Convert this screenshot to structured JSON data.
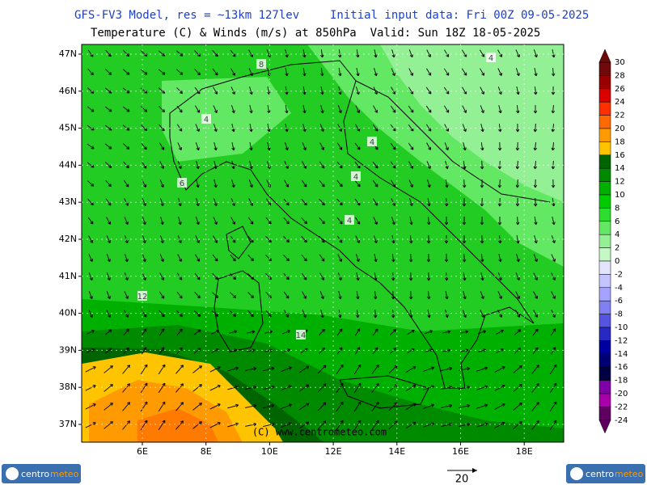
{
  "header": {
    "model": "GFS-FV3 Model, res = ~13km 127lev",
    "init": "Initial input data: Fri 00Z 09-05-2025",
    "subtitle": "Temperature (C) & Winds (m/s) at 850hPa  Valid: Sun 18Z 18-05-2025"
  },
  "map": {
    "lat_labels": [
      "47N",
      "46N",
      "45N",
      "44N",
      "43N",
      "42N",
      "41N",
      "40N",
      "39N",
      "38N",
      "37N"
    ],
    "lon_labels": [
      "6E",
      "8E",
      "10E",
      "12E",
      "14E",
      "16E",
      "18E"
    ],
    "contour_labels": [
      "8",
      "4",
      "4",
      "4",
      "4",
      "6",
      "4",
      "12",
      "14"
    ],
    "copyright": "(C) www.centrometeo.com"
  },
  "colorbar": {
    "labels": [
      30,
      28,
      26,
      24,
      22,
      20,
      18,
      16,
      14,
      12,
      10,
      8,
      6,
      4,
      2,
      0,
      -2,
      -4,
      -6,
      -8,
      -10,
      -12,
      -14,
      -16,
      -18,
      -20,
      -22,
      -24
    ],
    "colors": [
      "#6e0a0a",
      "#9a0000",
      "#d80000",
      "#ff3000",
      "#ff6a00",
      "#ff9a00",
      "#ffc400",
      "#006400",
      "#008a00",
      "#00b000",
      "#00cc00",
      "#2ede2e",
      "#62e862",
      "#94f094",
      "#c4f8c4",
      "#e4e4ff",
      "#c4c4ff",
      "#a4a4ff",
      "#8080f0",
      "#5454e0",
      "#2828c4",
      "#0000a0",
      "#000074",
      "#000044",
      "#8000a8",
      "#a800a8",
      "#600060"
    ]
  },
  "wind_scale": {
    "label": "20"
  },
  "logos": [
    {
      "left": "centro",
      "right": "meteo"
    },
    {
      "left": "centro",
      "right": "meteo"
    }
  ]
}
